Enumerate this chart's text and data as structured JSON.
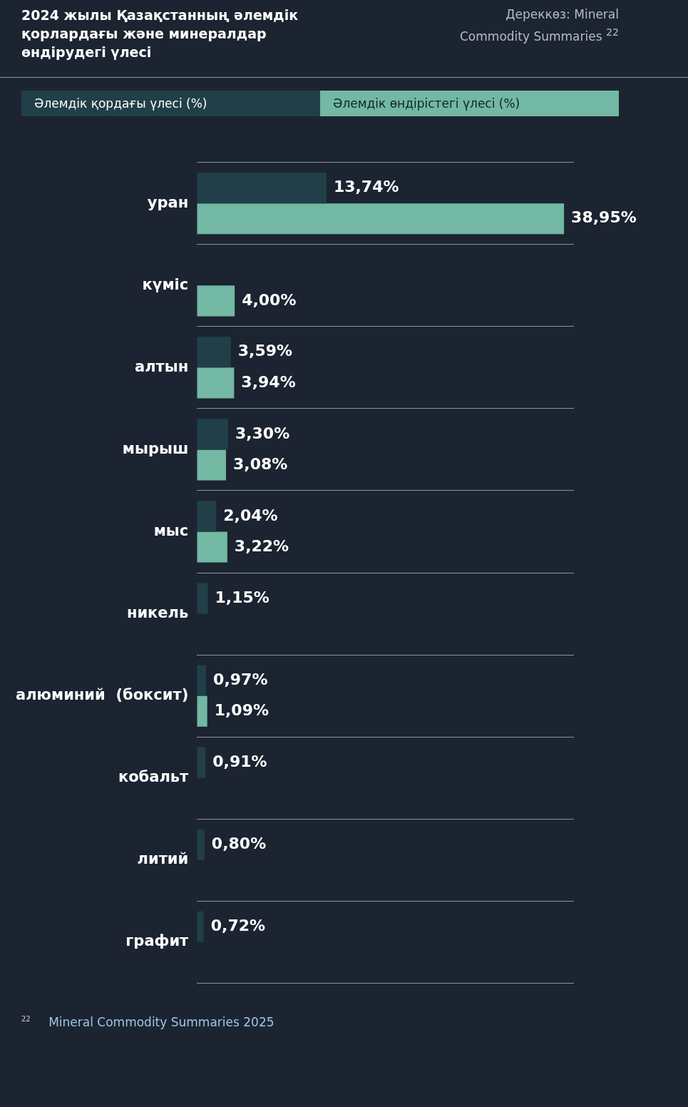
{
  "chart_data": {
    "type": "bar",
    "orientation": "horizontal",
    "title": "2024 жылы Қазақстанның әлемдік қорлардағы және минералдар өндірудегі үлесі",
    "subtitle": "Дереккөз: Mineral Commodity Summaries $^{22}$",
    "categories": [
      "уран",
      "күміс",
      "алтын",
      "мырыш",
      "мыс",
      "никель",
      "алюминий  (боксит)",
      "кобальт",
      "литий",
      "графит"
    ],
    "series": [
      {
        "name": "Әлемдік қордағы үлесі (%)",
        "color": "#213f48",
        "values": [
          13.74,
          null,
          3.59,
          3.3,
          2.04,
          1.15,
          0.97,
          0.91,
          0.8,
          0.72
        ],
        "value_labels": [
          "13,74%",
          null,
          "3,59%",
          "3,30%",
          "2,04%",
          "1,15%",
          "0,97%",
          "0,91%",
          "0,80%",
          "0,72%"
        ]
      },
      {
        "name": "Әлемдік өндірістегі үлесі (%)",
        "color": "#72b8a2",
        "values": [
          38.95,
          4.0,
          3.94,
          3.08,
          3.22,
          null,
          1.09,
          null,
          null,
          null
        ],
        "value_labels": [
          "38,95%",
          "4,00%",
          "3,94%",
          "3,08%",
          "3,22%",
          null,
          "1,09%",
          null,
          null,
          null
        ]
      }
    ],
    "legend": "top",
    "grid": "y",
    "tick_labels": "y",
    "annotations": [
      "$^{22}$ Mineral Commodity Summaries 2025"
    ]
  }
}
